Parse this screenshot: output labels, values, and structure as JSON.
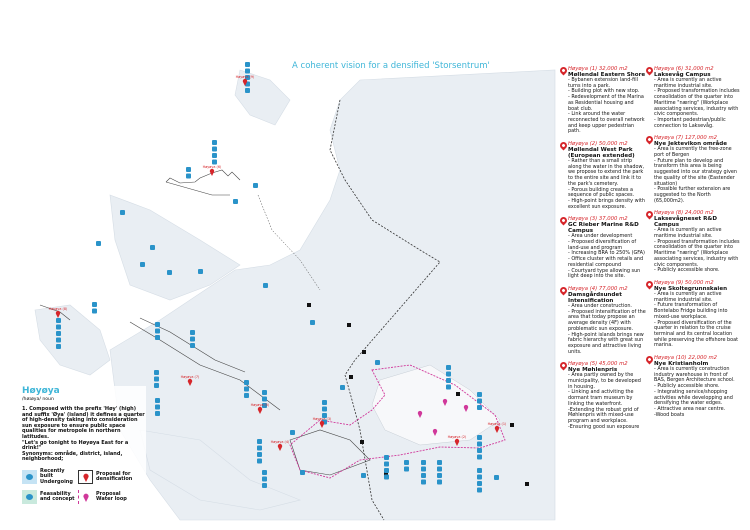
{
  "title": "A coherent vision for a densified 'Storsentrum'",
  "colors": {
    "accent": "#3fb6d8",
    "marker": "#d6262b",
    "loop": "#d0389a",
    "icon": "#2a93c9"
  },
  "map_labels": [
    "Høyøya (9)",
    "Høyøya (6)",
    "Høyøya (8)",
    "Høyøya (7)",
    "Høyøya (5)",
    "Høyøya (4)",
    "Høyøya (3)",
    "Høyøya (2)",
    "Høyøya (1)"
  ],
  "definition": {
    "word": "Høyøya",
    "pronunciation": "/høɪøya/ noun",
    "lines": [
      "1. Composed with the prefix 'Høy' (high) and suffix 'Øya' (island) it defines a quarter of high-density taking into consideration sun exposure to ensure public space qualities for metropole in northern latitudes.",
      "\"Let's go tonight to Høyøya East for a drink!\"",
      "Synonyms:      område, district, island, neighborhood;"
    ]
  },
  "legend": [
    {
      "icon": "speech-bubble-icon",
      "label1": "Recently built",
      "label2": "Undergoing",
      "bg": "#c5e3f4"
    },
    {
      "icon": "speech-bubble-icon",
      "label1": "Feasability",
      "label2": "and concept",
      "bg": "#c9e9dd"
    },
    {
      "icon": "red-pin-icon",
      "label1": "Proposal for",
      "label2": "densification"
    },
    {
      "icon": "pink-pin-icon",
      "label1": "Proposal",
      "label2": "Water loop"
    }
  ],
  "columns": [
    [
      {
        "header": "Høyøya (1) 32,000 m2",
        "name": "Møllendal Eastern Shore",
        "lines": [
          "- Bybanen extension land-fill turns into a park.",
          "- Building plot with new stop.",
          "- Redevelopment of the Marina as Residential housing and boat club.",
          "- Link around the water reconnected to overall network and keep upper pedestrian path."
        ]
      },
      {
        "header": "Høyøya (2) 50,000 m2",
        "name": "Møllendal West Park (European extended)",
        "lines": [
          "- Rather than a small strip along the water in the shadow, we propose to extend the park to the entire site and link it to the park's cemetery.",
          "- Porous building creates a sequence of public spaces.",
          "- High-point brings density with excellent sun exposure."
        ]
      },
      {
        "header": "Høyøya (3) 37,000 m2",
        "name": "GC Rieber Marine R&D Campus",
        "lines": [
          "- Area under development",
          "- Proposed diversification of land-use and program",
          "- Increasing BRA to 250% (GFA)",
          "- Office cluster with retails and residential compound",
          "- Courtyard type allowing sun light deep into the site."
        ]
      },
      {
        "header": "Høyøya (4) 77,000 m2",
        "name": "Damsgårdsundet Intensification",
        "lines": [
          "- Area under construction.",
          "- Proposed intensification of the area that today propose an average density (4F) with problematic sun exposure.",
          "- High-point islands brings new fabric hierarchy with great sun exposure and attractive living units."
        ]
      },
      {
        "header": "Høyøya (5) 45,000 m2",
        "name": "Nye Møhlenpris",
        "lines": [
          "- Area partly owned by the municipality, to be developed in housing.",
          "- Linking and activiting the dormant tram museum by linking the waterfront.",
          "-Extending the robust grid of Møhlenpris with mixed-use program and workplace.",
          "-Ensuring good sun exposure"
        ]
      }
    ],
    [
      {
        "header": "Høyøya (6) 31,000 m2",
        "name": "Laksevåg Campus",
        "lines": [
          "- Area is currently an active maritime industrial site.",
          "- Proposed transformation includes consolidation of the quarter into Maritime \"næring\" (Workplace associating services, industry with civic components.",
          "- Important pedestrian/public connection to Laksevåg."
        ]
      },
      {
        "header": "Høyøya (7) 127,000 m2",
        "name": "Nye Jektevikon område",
        "lines": [
          "- Area is currently the free-zone port of Bergen",
          "- Future plan to develop and transform this area is being suggested into our strategy given the quality of the site (Eastender situation)",
          "- Possible further extension are suggested to the North (65,000m2)."
        ]
      },
      {
        "header": "Høyøya (8) 24,000 m2",
        "name": "Laksevågneset R&D Campus",
        "lines": [
          "- Area is currently an active maritime industrial site.",
          "- Proposed transformation includes consolidation of the quarter into Maritime \"næring\" (Workplace associating services, industry with civic components.",
          "- Publicly accessible shore."
        ]
      },
      {
        "header": "Høyøya (9) 50,000 m2",
        "name": "Nye Skoltegrunnskaien",
        "lines": [
          "- Area is currently an active maritime industrial site.",
          "- Future transformation of Bontelabo Fridge building into mixed-use workplace.",
          "- Proposed diversification of the quarter in relation to the cruise terminal and its central location while preserving the offshore boat marina."
        ]
      },
      {
        "header": "Høyøya (10) 22,000 m2",
        "name": "Nye Kristianholm",
        "lines": [
          "- Area is currently construction industry warehouse in front of BAS, Bergen Architecture school.",
          "- Publicly accessible shore.",
          "- Integrating service/shopping activities while developping and densifying the water edges.",
          "- Attractive area near centre.",
          "-Wood boats"
        ]
      }
    ]
  ]
}
